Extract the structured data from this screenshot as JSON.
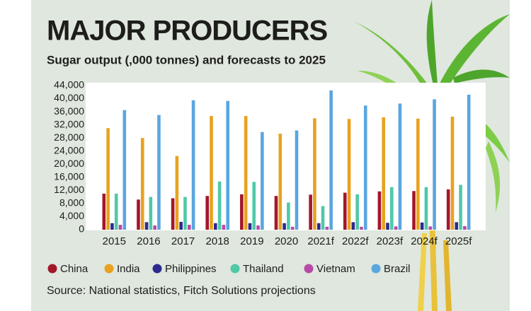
{
  "chart_data": {
    "type": "bar",
    "title": "MAJOR PRODUCERS",
    "subtitle": "Sugar output (,000 tonnes) and forecasts to 2025",
    "source": "Source: National statistics, Fitch Solutions projections",
    "categories": [
      "2015",
      "2016",
      "2017",
      "2018",
      "2019",
      "2020",
      "2021f",
      "2022f",
      "2023f",
      "2024f",
      "2025f"
    ],
    "series": [
      {
        "name": "China",
        "color": "#a3172b",
        "values": [
          11000,
          9200,
          9600,
          10300,
          10800,
          10300,
          10700,
          11300,
          11700,
          11800,
          12300
        ]
      },
      {
        "name": "India",
        "color": "#e8a21f",
        "values": [
          31000,
          28000,
          22500,
          34700,
          34700,
          29300,
          34000,
          33800,
          34300,
          33900,
          34500
        ]
      },
      {
        "name": "Philippines",
        "color": "#2d2a8e",
        "values": [
          2000,
          2300,
          2400,
          2000,
          2000,
          2000,
          2000,
          2300,
          2100,
          2200,
          2300
        ]
      },
      {
        "name": "Thailand",
        "color": "#4fc9a7",
        "values": [
          11000,
          10000,
          10000,
          14700,
          14600,
          8300,
          7200,
          10800,
          13000,
          13000,
          13700
        ]
      },
      {
        "name": "Vietnam",
        "color": "#b84aa6",
        "values": [
          1500,
          1300,
          1500,
          1500,
          1300,
          900,
          900,
          900,
          1000,
          1000,
          1100
        ]
      },
      {
        "name": "Brazil",
        "color": "#5aa6df",
        "values": [
          36500,
          35000,
          39500,
          39300,
          29800,
          30300,
          42500,
          37900,
          38500,
          39800,
          41200
        ]
      }
    ],
    "ylim": [
      0,
      44000
    ],
    "yticks": [
      0,
      {
        "value": 4000,
        "label": "4,000"
      },
      {
        "value": 8000,
        "label": "8,000"
      },
      {
        "value": 12000,
        "label": "12,000"
      },
      {
        "value": 16000,
        "label": "16,000"
      },
      {
        "value": 20000,
        "label": "20,000"
      },
      {
        "value": 24000,
        "label": "24,000"
      },
      {
        "value": 28000,
        "label": "28,000"
      },
      {
        "value": 32000,
        "label": "32,000"
      },
      {
        "value": 36000,
        "label": "36,000"
      },
      {
        "value": 40000,
        "label": "40,000"
      },
      {
        "value": 44000,
        "label": "44,000"
      }
    ]
  }
}
